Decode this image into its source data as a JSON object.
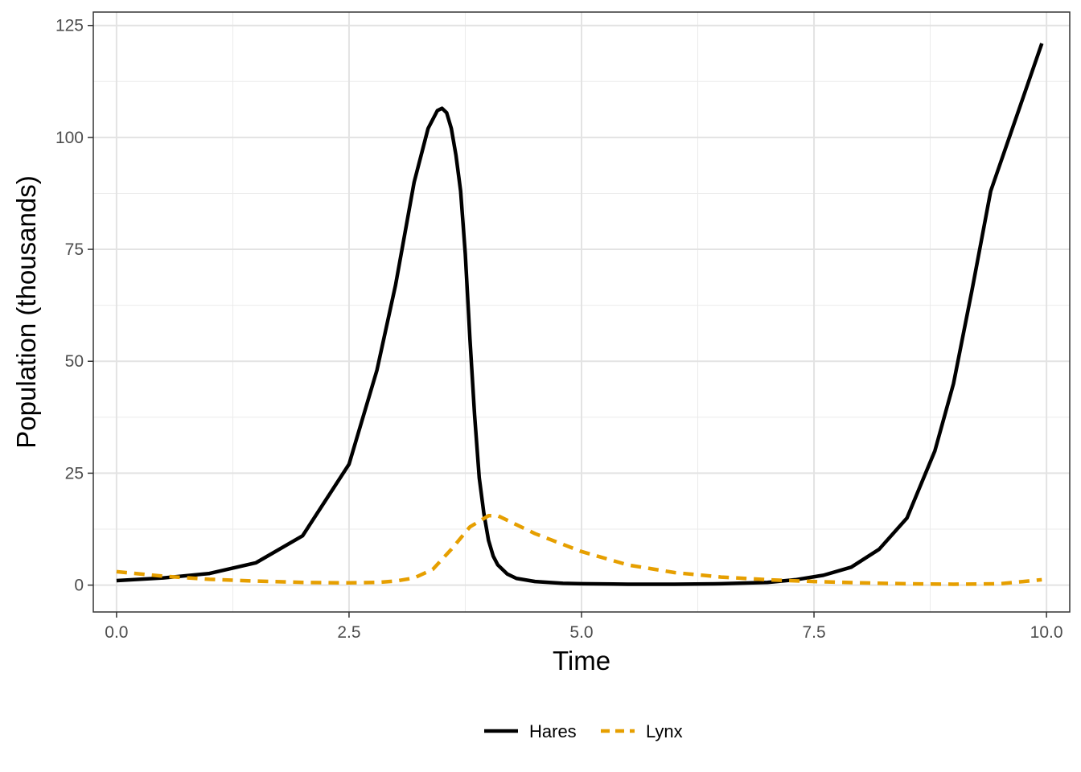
{
  "chart_data": {
    "type": "line",
    "xlabel": "Time",
    "ylabel": "Population (thousands)",
    "xlim": [
      -0.25,
      10.25
    ],
    "ylim": [
      -6,
      128
    ],
    "x_ticks": [
      0,
      2.5,
      5,
      7.5,
      10
    ],
    "x_tick_labels": [
      "0.0",
      "2.5",
      "5.0",
      "7.5",
      "10.0"
    ],
    "y_ticks": [
      0,
      25,
      50,
      75,
      100,
      125
    ],
    "y_tick_labels": [
      "0",
      "25",
      "50",
      "75",
      "100",
      "125"
    ],
    "grid": true,
    "legend": {
      "position": "bottom"
    },
    "series": [
      {
        "name": "Hares",
        "color": "#000000",
        "dash": "solid",
        "x": [
          0,
          0.5,
          1.0,
          1.5,
          2.0,
          2.5,
          2.8,
          3.0,
          3.2,
          3.35,
          3.45,
          3.5,
          3.55,
          3.6,
          3.65,
          3.7,
          3.75,
          3.8,
          3.85,
          3.9,
          3.95,
          4.0,
          4.05,
          4.1,
          4.2,
          4.3,
          4.5,
          4.8,
          5.0,
          5.5,
          6.0,
          6.5,
          7.0,
          7.3,
          7.6,
          7.9,
          8.2,
          8.5,
          8.8,
          9.0,
          9.2,
          9.4,
          9.6,
          9.8,
          9.95
        ],
        "y": [
          1,
          1.6,
          2.6,
          5,
          11,
          27,
          48,
          67,
          90,
          102,
          106,
          106.5,
          105.5,
          102,
          96,
          88,
          74,
          55,
          38,
          24,
          16,
          10,
          6.5,
          4.5,
          2.5,
          1.5,
          0.8,
          0.4,
          0.3,
          0.2,
          0.2,
          0.3,
          0.6,
          1.2,
          2.2,
          4,
          8,
          15,
          30,
          45,
          66,
          88,
          100,
          112,
          121
        ]
      },
      {
        "name": "Lynx",
        "color": "#E69F00",
        "dash": "dashed",
        "x": [
          0,
          0.5,
          1.0,
          1.5,
          2.0,
          2.5,
          2.8,
          3.0,
          3.2,
          3.4,
          3.6,
          3.8,
          4.0,
          4.1,
          4.3,
          4.5,
          5.0,
          5.5,
          6.0,
          6.5,
          7.0,
          7.5,
          8.0,
          8.5,
          9.0,
          9.5,
          9.95
        ],
        "y": [
          3,
          2,
          1.3,
          0.9,
          0.6,
          0.5,
          0.6,
          0.9,
          1.6,
          3.5,
          8,
          13,
          15.5,
          15.5,
          13.5,
          11.5,
          7.5,
          4.5,
          2.8,
          1.8,
          1.2,
          0.8,
          0.5,
          0.3,
          0.2,
          0.3,
          1.2
        ]
      }
    ]
  }
}
